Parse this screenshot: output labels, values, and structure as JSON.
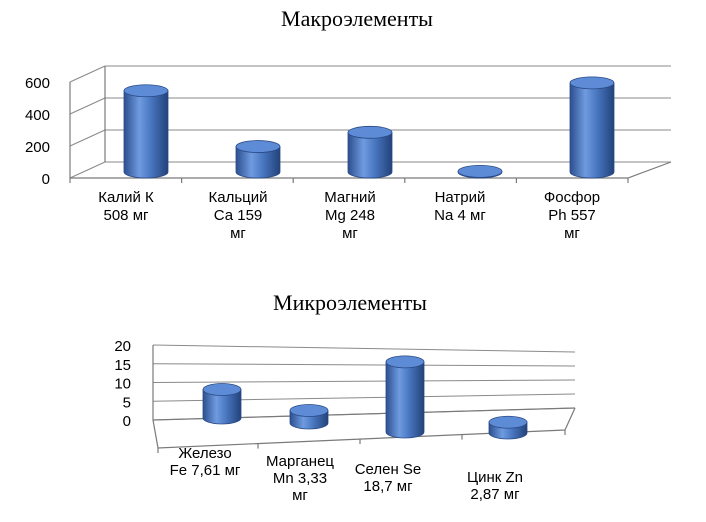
{
  "chart_data": [
    {
      "type": "bar",
      "title": "Макроэлементы",
      "ylim": [
        0,
        600
      ],
      "yticks": [
        "0",
        "200",
        "400",
        "600"
      ],
      "categories": [
        [
          "Калий К",
          "508 мг"
        ],
        [
          "Кальций",
          "Са 159",
          "мг"
        ],
        [
          "Магний",
          "Mg 248",
          "мг"
        ],
        [
          "Натрий",
          "Na 4 мг"
        ],
        [
          "Фосфор",
          "Ph 557",
          "мг"
        ]
      ],
      "values": [
        508,
        159,
        248,
        4,
        557
      ],
      "color": "#4a78c2",
      "grid": true
    },
    {
      "type": "bar",
      "title": "Микроэлементы",
      "ylim": [
        0,
        20
      ],
      "yticks": [
        "0",
        "5",
        "10",
        "15",
        "20"
      ],
      "categories": [
        [
          "Железо",
          "Fe 7,61 мг"
        ],
        [
          "Марганец",
          "Mn 3,33",
          "мг"
        ],
        [
          "Селен Se",
          "18,7 мг"
        ],
        [
          "Цинк Zn",
          "2,87 мг"
        ]
      ],
      "values": [
        7.61,
        3.33,
        18.7,
        2.87
      ],
      "color": "#4a78c2",
      "grid": true
    }
  ]
}
